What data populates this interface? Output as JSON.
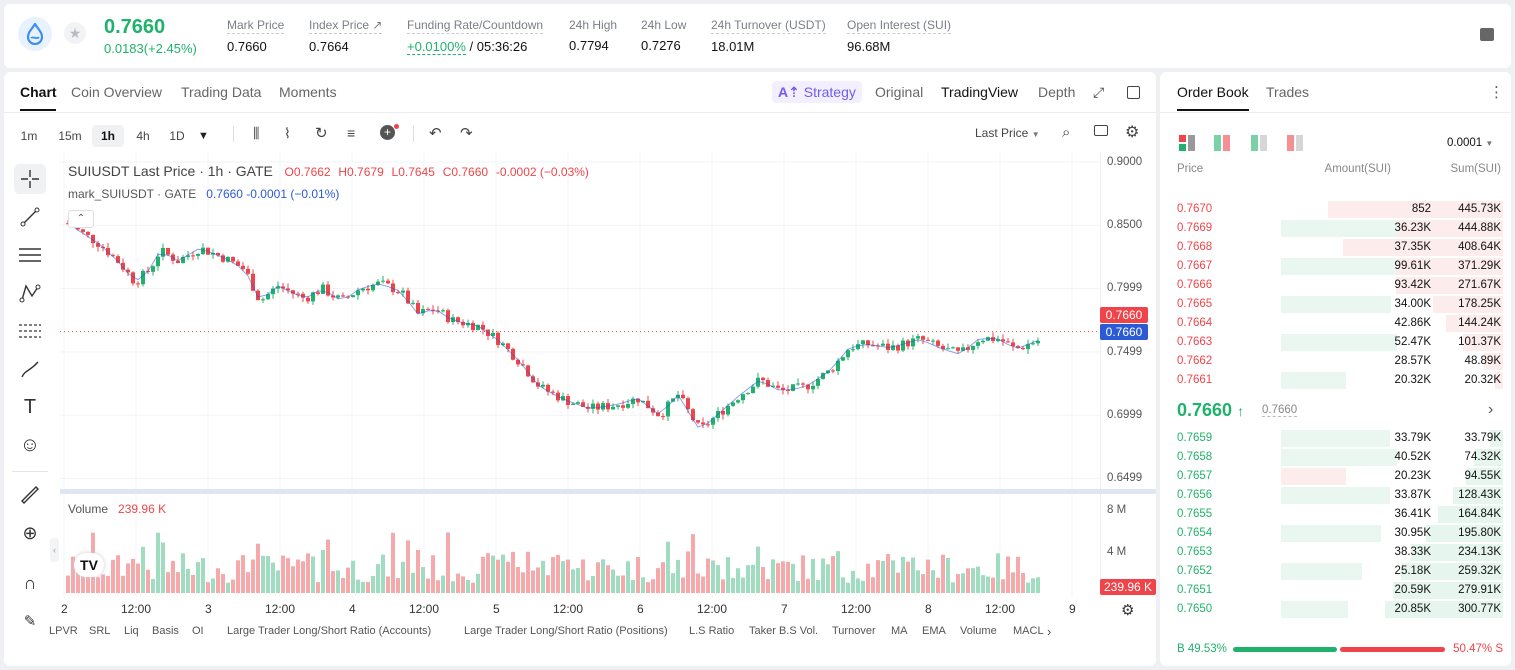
{
  "ticker": {
    "price": "0.7660",
    "change": "0.0183(+2.45%)",
    "stats": [
      {
        "label": "Mark Price",
        "value": "0.7660"
      },
      {
        "label": "Index Price",
        "value": "0.7664"
      },
      {
        "label": "Funding Rate/Countdown",
        "value_rate": "+0.0100%",
        "value": "/ 05:36:26"
      },
      {
        "label": "24h High",
        "value": "0.7794"
      },
      {
        "label": "24h Low",
        "value": "0.7276"
      },
      {
        "label": "24h Turnover (USDT)",
        "value": "18.01M"
      },
      {
        "label": "Open Interest (SUI)",
        "value": "96.68M"
      }
    ]
  },
  "chart_tabs": [
    "Chart",
    "Coin Overview",
    "Trading Data",
    "Moments"
  ],
  "view_tabs": {
    "strategy": "Strategy",
    "original": "Original",
    "tradingview": "TradingView",
    "depth": "Depth"
  },
  "timeframes": [
    "1m",
    "15m",
    "1h",
    "4h",
    "1D"
  ],
  "price_type": "Last Price",
  "legend": {
    "title": "SUIUSDT Last Price · 1h · GATE",
    "o": "O0.7662",
    "h": "H0.7679",
    "l": "L0.7645",
    "c": "C0.7660",
    "chg": "-0.0002 (−0.03%)",
    "mark_name": "mark_SUIUSDT · GATE",
    "mark_vals": "0.7660 -0.0001 (−0.01%)"
  },
  "volume": {
    "label": "Volume",
    "value": "239.96 K",
    "axis": [
      "8 M",
      "4 M"
    ],
    "tag": "239.96 K"
  },
  "price_axis": [
    "0.9000",
    "0.8500",
    "0.7999",
    "0.7499",
    "0.6999",
    "0.6499"
  ],
  "price_tags": {
    "last": "0.7660",
    "mark": "0.7660"
  },
  "x_axis": [
    "2",
    "12:00",
    "3",
    "12:00",
    "4",
    "12:00",
    "5",
    "12:00",
    "6",
    "12:00",
    "7",
    "12:00",
    "8",
    "12:00",
    "9"
  ],
  "indicators": [
    "LPVR",
    "SRL",
    "Liq",
    "Basis",
    "OI",
    "Large Trader Long/Short Ratio (Accounts)",
    "Large Trader Long/Short Ratio (Positions)",
    "L.S Ratio",
    "Taker B.S Vol.",
    "Turnover",
    "MA",
    "EMA",
    "Volume",
    "MACL"
  ],
  "orderbook": {
    "tabs": [
      "Order Book",
      "Trades"
    ],
    "precision": "0.0001",
    "headers": {
      "price": "Price",
      "amount": "Amount(SUI)",
      "sum": "Sum(SUI)"
    },
    "asks": [
      {
        "price": "0.7670",
        "amount": "852",
        "sum": "445.73K"
      },
      {
        "price": "0.7669",
        "amount": "36.23K",
        "sum": "444.88K"
      },
      {
        "price": "0.7668",
        "amount": "37.35K",
        "sum": "408.64K"
      },
      {
        "price": "0.7667",
        "amount": "99.61K",
        "sum": "371.29K"
      },
      {
        "price": "0.7666",
        "amount": "93.42K",
        "sum": "271.67K"
      },
      {
        "price": "0.7665",
        "amount": "34.00K",
        "sum": "178.25K"
      },
      {
        "price": "0.7664",
        "amount": "42.86K",
        "sum": "144.24K"
      },
      {
        "price": "0.7663",
        "amount": "52.47K",
        "sum": "101.37K"
      },
      {
        "price": "0.7662",
        "amount": "28.57K",
        "sum": "48.89K"
      },
      {
        "price": "0.7661",
        "amount": "20.32K",
        "sum": "20.32K"
      }
    ],
    "last_price": "0.7660",
    "mark_price": "0.7660",
    "bids": [
      {
        "price": "0.7659",
        "amount": "33.79K",
        "sum": "33.79K"
      },
      {
        "price": "0.7658",
        "amount": "40.52K",
        "sum": "74.32K"
      },
      {
        "price": "0.7657",
        "amount": "20.23K",
        "sum": "94.55K"
      },
      {
        "price": "0.7656",
        "amount": "33.87K",
        "sum": "128.43K"
      },
      {
        "price": "0.7655",
        "amount": "36.41K",
        "sum": "164.84K"
      },
      {
        "price": "0.7654",
        "amount": "30.95K",
        "sum": "195.80K"
      },
      {
        "price": "0.7653",
        "amount": "38.33K",
        "sum": "234.13K"
      },
      {
        "price": "0.7652",
        "amount": "25.18K",
        "sum": "259.32K"
      },
      {
        "price": "0.7651",
        "amount": "20.59K",
        "sum": "279.91K"
      },
      {
        "price": "0.7650",
        "amount": "20.85K",
        "sum": "300.77K"
      }
    ],
    "buy_ratio": "49.53%",
    "sell_ratio": "50.47%",
    "buy_label": "B",
    "sell_label": "S"
  },
  "colors": {
    "up": "#20b26c",
    "down": "#ef454a",
    "accent": "#6f5df0",
    "mark_blue": "#2c5ad4"
  }
}
